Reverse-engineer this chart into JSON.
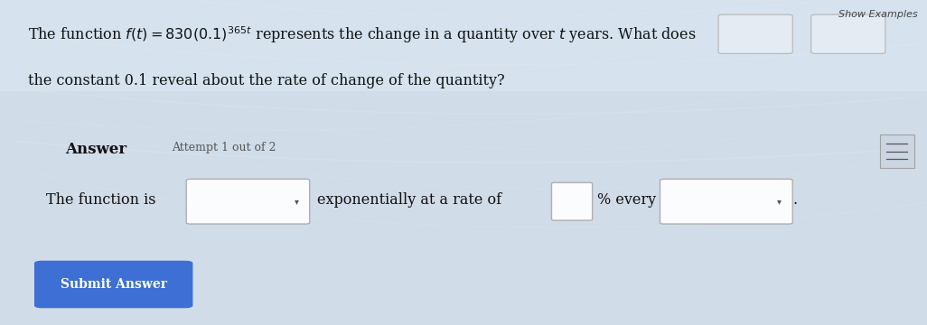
{
  "bg_color": "#d0dce8",
  "bg_light": "#e8eef5",
  "text_color": "#1a1a1a",
  "text_color_dark": "#111111",
  "title_line1": "The function $f(t) = 830(0.1)^{365t}$ represents the change in a quantity over $t$ years. What does",
  "title_line2": "the constant 0.1 reveal about the rate of change of the quantity?",
  "answer_label": "Answer",
  "attempt_label": "Attempt 1 out of 2",
  "sentence_start": "The function is",
  "sentence_mid": "exponentially at a rate of",
  "sentence_pct": "% every",
  "show_examples": "Show Examples",
  "submit_text": "Submit Answer",
  "submit_color": "#3d6fd4",
  "font_size_main": 11.5,
  "font_size_answer": 12,
  "font_size_attempt": 9,
  "font_size_sentence": 11.5,
  "font_size_submit": 10,
  "font_size_topright": 8
}
